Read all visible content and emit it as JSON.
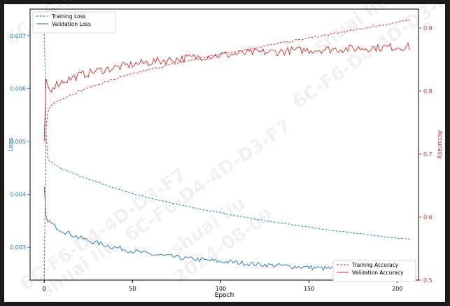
{
  "chart_data": {
    "type": "line",
    "title": "",
    "xlabel": "Epoch",
    "ylabel_left": "Loss",
    "ylabel_right": "Accuracy",
    "xlim": [
      -8,
      212
    ],
    "ylim_left": [
      0.00238,
      0.0075
    ],
    "ylim_right": [
      0.5,
      0.93
    ],
    "x_ticks": [
      0,
      50,
      100,
      150,
      200
    ],
    "y_ticks_left": [
      0.003,
      0.004,
      0.005,
      0.006,
      0.007
    ],
    "y_ticks_right": [
      0.5,
      0.6,
      0.7,
      0.8,
      0.9
    ],
    "grid": false,
    "legend_loss": "top-left",
    "legend_accuracy": "bottom-right",
    "colors": {
      "loss": "#1f77b4",
      "accuracy": "#d62728"
    },
    "series": [
      {
        "name": "Training Loss",
        "axis": "left",
        "style": "dashed",
        "x": [
          0,
          1,
          2,
          3,
          5,
          10,
          20,
          30,
          40,
          50,
          60,
          70,
          80,
          90,
          100,
          110,
          120,
          130,
          140,
          150,
          160,
          170,
          180,
          190,
          200,
          207
        ],
        "y": [
          0.0073,
          0.0052,
          0.0047,
          0.00463,
          0.00458,
          0.00448,
          0.00435,
          0.00423,
          0.00412,
          0.00402,
          0.00393,
          0.00385,
          0.00378,
          0.00371,
          0.00365,
          0.00359,
          0.00353,
          0.00348,
          0.00343,
          0.00338,
          0.00333,
          0.00329,
          0.00325,
          0.00321,
          0.00317,
          0.00315
        ]
      },
      {
        "name": "Validation Loss",
        "axis": "left",
        "style": "solid",
        "x": [
          0,
          1,
          2,
          3,
          5,
          10,
          20,
          30,
          40,
          50,
          60,
          70,
          80,
          90,
          100,
          110,
          120,
          130,
          140,
          150,
          160,
          170,
          180,
          190,
          200,
          207
        ],
        "y": [
          0.00415,
          0.0036,
          0.00352,
          0.00348,
          0.00342,
          0.00332,
          0.00318,
          0.00308,
          0.003,
          0.00293,
          0.00287,
          0.00283,
          0.00279,
          0.00276,
          0.00273,
          0.00271,
          0.00268,
          0.00266,
          0.00264,
          0.00262,
          0.0026,
          0.00259,
          0.00258,
          0.00257,
          0.00256,
          0.00255
        ]
      },
      {
        "name": "Training Accuracy",
        "axis": "right",
        "style": "dashed",
        "x": [
          0,
          1,
          2,
          3,
          5,
          10,
          20,
          30,
          40,
          50,
          60,
          70,
          80,
          90,
          100,
          110,
          120,
          130,
          140,
          150,
          160,
          170,
          180,
          190,
          200,
          207
        ],
        "y": [
          0.5,
          0.74,
          0.765,
          0.773,
          0.78,
          0.788,
          0.8,
          0.81,
          0.819,
          0.827,
          0.834,
          0.841,
          0.847,
          0.853,
          0.859,
          0.864,
          0.869,
          0.874,
          0.879,
          0.884,
          0.889,
          0.894,
          0.899,
          0.904,
          0.909,
          0.912
        ]
      },
      {
        "name": "Validation Accuracy",
        "axis": "right",
        "style": "solid",
        "x": [
          0,
          1,
          2,
          3,
          5,
          10,
          20,
          30,
          40,
          50,
          60,
          70,
          80,
          90,
          100,
          110,
          120,
          130,
          140,
          150,
          160,
          170,
          180,
          190,
          200,
          207
        ],
        "y": [
          0.72,
          0.82,
          0.81,
          0.8,
          0.808,
          0.815,
          0.825,
          0.832,
          0.837,
          0.842,
          0.846,
          0.849,
          0.852,
          0.855,
          0.857,
          0.859,
          0.861,
          0.862,
          0.864,
          0.865,
          0.866,
          0.867,
          0.868,
          0.869,
          0.87,
          0.87
        ]
      }
    ]
  },
  "watermark": {
    "lines": [
      "6C-F6-D4-4D-D3-F7",
      "shuai liu",
      "2024-08-09"
    ]
  }
}
